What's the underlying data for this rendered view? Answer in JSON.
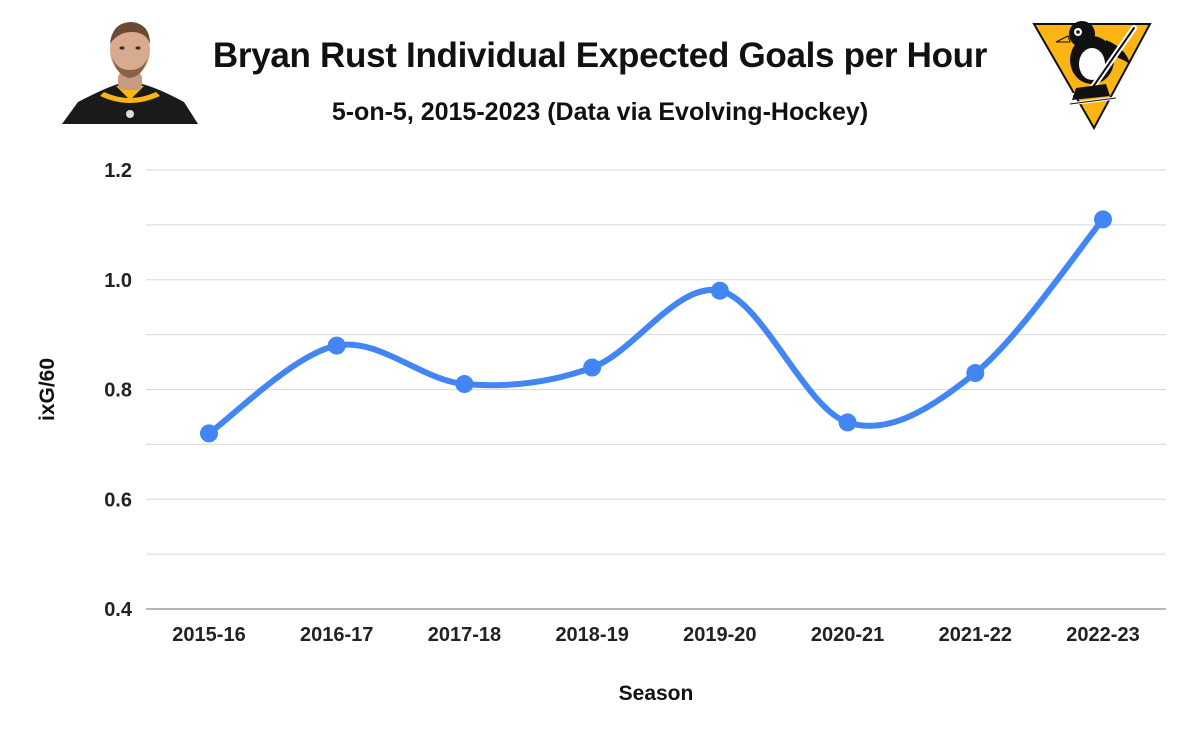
{
  "chart_data": {
    "type": "line",
    "title": "Bryan Rust Individual Expected Goals per Hour",
    "subtitle": "5-on-5, 2015-2023 (Data via Evolving-Hockey)",
    "xlabel": "Season",
    "ylabel": "ixG/60",
    "categories": [
      "2015-16",
      "2016-17",
      "2017-18",
      "2018-19",
      "2019-20",
      "2020-21",
      "2021-22",
      "2022-23"
    ],
    "series": [
      {
        "values": [
          0.72,
          0.88,
          0.81,
          0.84,
          0.98,
          0.74,
          0.83,
          1.11
        ],
        "color": "#4285f4"
      }
    ],
    "ylim": [
      0.4,
      1.2
    ],
    "yticks": [
      0.4,
      0.6,
      0.8,
      1.0,
      1.2
    ],
    "ytick_labels": [
      "0.4",
      "0.6",
      "0.8",
      "1.0",
      "1.2"
    ],
    "grid": true,
    "smooth": true,
    "markers": true,
    "legend": "none"
  },
  "images": {
    "player_photo": "player-headshot",
    "team_logo": "pittsburgh-penguins-logo"
  },
  "colors": {
    "line": "#4285f4",
    "grid": "#d9d9d9",
    "logo_gold": "#fcb514",
    "logo_black": "#111111"
  }
}
